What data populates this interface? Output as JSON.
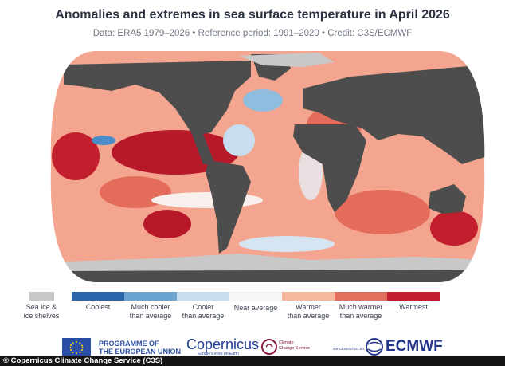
{
  "title": "Anomalies and extremes in sea surface temperature in April 2026",
  "subtitle": "Data: ERA5 1979–2026  •  Reference period: 1991–2020  •  Credit: C3S/ECMWF",
  "map": {
    "type": "world sea surface temperature anomaly map",
    "land_color": "#4d4d4d",
    "ice_color": "#c8c8c8"
  },
  "legend": [
    {
      "label": "Sea ice &\nice shelves",
      "color": "#c8c8c8",
      "swatch": false
    },
    {
      "label": "Coolest",
      "color": "#2a66ab"
    },
    {
      "label": "Much cooler\nthan average",
      "color": "#6aa3d0"
    },
    {
      "label": "Cooler\nthan average",
      "color": "#c6def0"
    },
    {
      "label": "Near average",
      "color": "#f7f7f7"
    },
    {
      "label": "Warmer\nthan average",
      "color": "#f6b79c"
    },
    {
      "label": "Much warmer\nthan average",
      "color": "#e26e5c"
    },
    {
      "label": "Warmest",
      "color": "#c21f2e"
    }
  ],
  "logos": {
    "eu": "PROGRAMME OF\nTHE EUROPEAN UNION",
    "copernicus": "Copernicus",
    "copernicus_tagline": "Europe's eyes on Earth",
    "c3s": "Climate\nChange Service",
    "implemented_by": "IMPLEMENTED BY",
    "ecmwf": "ECMWF"
  },
  "credit": "© Copernicus Climate Change Service (C3S)"
}
